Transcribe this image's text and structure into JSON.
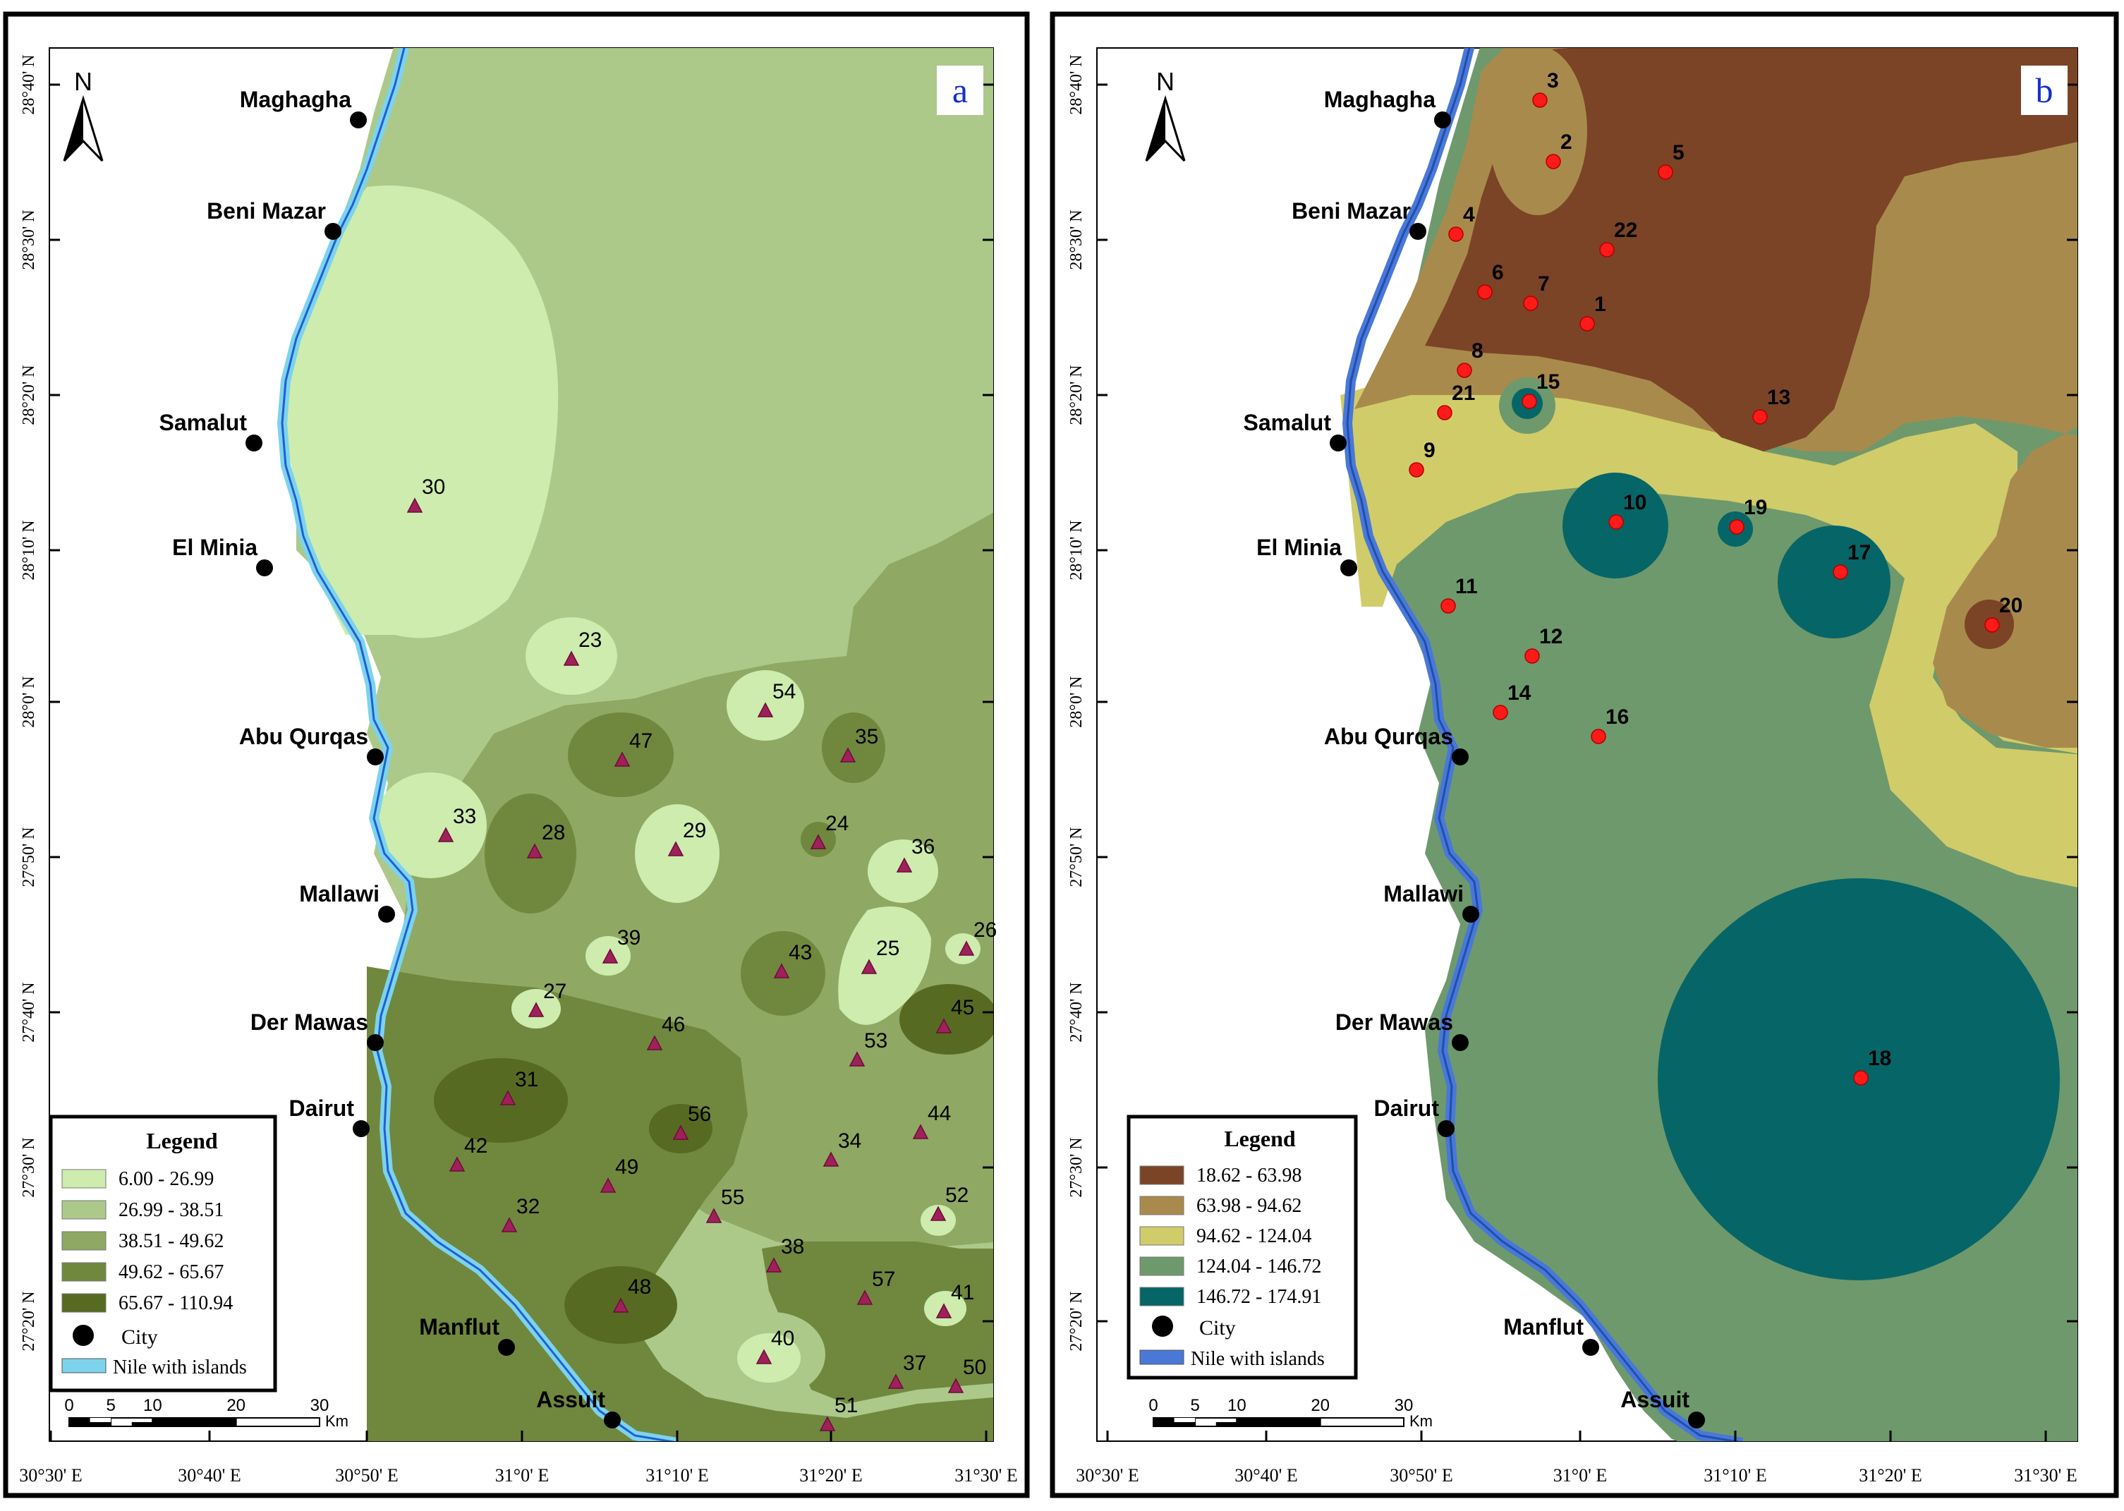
{
  "panels": [
    {
      "letter": "a",
      "legend": {
        "title": "Legend",
        "classes": [
          {
            "label": "6.00 - 26.99",
            "color": "#cdecae"
          },
          {
            "label": "26.99 - 38.51",
            "color": "#acc98a"
          },
          {
            "label": "38.51 - 49.62",
            "color": "#8fa863"
          },
          {
            "label": "49.62 - 65.67",
            "color": "#70873e"
          },
          {
            "label": "65.67 - 110.94",
            "color": "#566a22"
          }
        ],
        "city_label": "City",
        "nile_label": "Nile with islands",
        "nile_color": "#7dd3ec"
      },
      "wells": [
        "30",
        "23",
        "54",
        "47",
        "35",
        "33",
        "28",
        "29",
        "24",
        "36",
        "39",
        "43",
        "25",
        "26",
        "27",
        "46",
        "53",
        "45",
        "31",
        "56",
        "44",
        "42",
        "34",
        "49",
        "52",
        "32",
        "55",
        "38",
        "57",
        "48",
        "41",
        "40",
        "37",
        "50",
        "51"
      ]
    },
    {
      "letter": "b",
      "legend": {
        "title": "Legend",
        "classes": [
          {
            "label": "18.62 - 63.98",
            "color": "#7b4426"
          },
          {
            "label": "63.98 - 94.62",
            "color": "#a98a4d"
          },
          {
            "label": "94.62 - 124.04",
            "color": "#d0cc6a"
          },
          {
            "label": "124.04 - 146.72",
            "color": "#6e996c"
          },
          {
            "label": "146.72 - 174.91",
            "color": "#066567"
          }
        ],
        "city_label": "City",
        "nile_label": "Nile with islands",
        "nile_color": "#4a78d6"
      },
      "wells": [
        "3",
        "2",
        "5",
        "4",
        "22",
        "6",
        "7",
        "1",
        "8",
        "15",
        "21",
        "13",
        "9",
        "10",
        "19",
        "17",
        "11",
        "20",
        "12",
        "14",
        "16",
        "18"
      ]
    }
  ],
  "north_label": "N",
  "cities": [
    "Maghagha",
    "Beni Mazar",
    "Samalut",
    "El Minia",
    "Abu Qurqas",
    "Mallawi",
    "Der Mawas",
    "Dairut",
    "Manflut",
    "Assuit"
  ],
  "lat_labels": [
    "28°40' N",
    "28°30' N",
    "28°20' N",
    "28°10' N",
    "28°0' N",
    "27°50' N",
    "27°40' N",
    "27°30' N",
    "27°20' N"
  ],
  "lon_labels": [
    "30°30' E",
    "30°40' E",
    "30°50' E",
    "31°0' E",
    "31°10' E",
    "31°20' E",
    "31°30' E"
  ],
  "scale_bar": {
    "ticks": [
      "0",
      "5",
      "10",
      "20",
      "30"
    ],
    "unit": "Km"
  }
}
